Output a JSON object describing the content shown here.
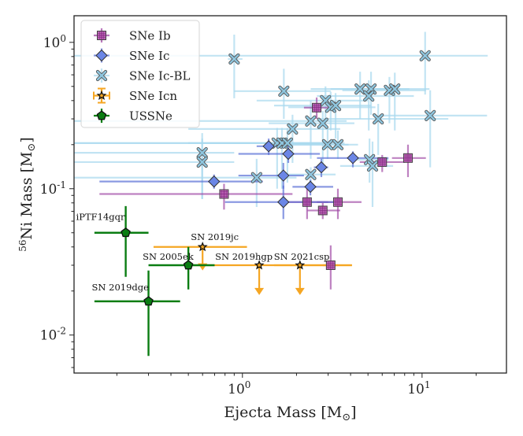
{
  "chart_data": {
    "type": "scatter",
    "title": "",
    "xlabel": "Ejecta Mass [M⊙]",
    "ylabel": "56Ni Mass [M⊙]",
    "xlabel_parts": {
      "text": "Ejecta Mass [M",
      "sub": "⊙",
      "close": "]"
    },
    "ylabel_parts": {
      "sup": "56",
      "text": "Ni Mass [M",
      "sub": "⊙",
      "close": "]"
    },
    "xscale": "log",
    "yscale": "log",
    "xlim": [
      0.1155,
      29.5
    ],
    "ylim": [
      0.0055,
      1.52
    ],
    "grid": false,
    "legend_position": "top-left",
    "x_ticks": [
      {
        "value": 1,
        "base": "10",
        "exp": "0"
      },
      {
        "value": 10,
        "base": "10",
        "exp": "1"
      }
    ],
    "y_ticks": [
      {
        "value": 1,
        "base": "10",
        "exp": "0"
      },
      {
        "value": 0.1,
        "base": "10",
        "exp": "-1"
      },
      {
        "value": 0.01,
        "base": "10",
        "exp": "-2"
      }
    ],
    "series": [
      {
        "name": "SNe Ib",
        "marker": "square",
        "color": "#9b3fa0",
        "face": "#b04aa8",
        "points": [
          {
            "x": 2.59,
            "y": 0.358,
            "xerr": [
              2.2,
              3.0
            ],
            "yerr": [
              0.3,
              0.42
            ]
          },
          {
            "x": 6.0,
            "y": 0.152,
            "xerr": [
              4.5,
              8.0
            ],
            "yerr": [
              0.13,
              0.17
            ]
          },
          {
            "x": 8.35,
            "y": 0.162,
            "xerr": [
              6.8,
              10.5
            ],
            "yerr": [
              0.12,
              0.2
            ]
          },
          {
            "x": 0.79,
            "y": 0.092,
            "xerr": [
              0.16,
              1.9
            ],
            "yerr": [
              0.072,
              0.108
            ]
          },
          {
            "x": 2.29,
            "y": 0.081,
            "xerr": [
              1.7,
              3.0
            ],
            "yerr": [
              0.062,
              0.1
            ]
          },
          {
            "x": 3.4,
            "y": 0.081,
            "xerr": [
              2.6,
              4.6
            ],
            "yerr": [
              0.062,
              0.1
            ]
          },
          {
            "x": 2.8,
            "y": 0.071,
            "xerr": [
              2.3,
              3.5
            ],
            "yerr": [
              0.062,
              0.08
            ]
          },
          {
            "x": 3.1,
            "y": 0.03,
            "xerr": [
              2.8,
              3.4
            ],
            "yerr": [
              0.0205,
              0.041
            ]
          }
        ]
      },
      {
        "name": "SNe Ic",
        "marker": "diamond",
        "color": "#5a6fd6",
        "face": "#6b86e6",
        "points": [
          {
            "x": 1.4,
            "y": 0.195,
            "xerr": [
              1.2,
              1.6
            ],
            "yerr": [
              0.17,
              0.22
            ]
          },
          {
            "x": 1.8,
            "y": 0.173,
            "xerr": [
              0.95,
              2.7
            ],
            "yerr": [
              0.15,
              0.2
            ]
          },
          {
            "x": 4.12,
            "y": 0.162,
            "xerr": [
              2.6,
              6.5
            ],
            "yerr": [
              0.14,
              0.18
            ]
          },
          {
            "x": 2.75,
            "y": 0.14,
            "xerr": [
              2.5,
              3.0
            ],
            "yerr": [
              0.12,
              0.16
            ]
          },
          {
            "x": 1.69,
            "y": 0.123,
            "xerr": [
              0.95,
              2.2
            ],
            "yerr": [
              0.1,
              0.15
            ]
          },
          {
            "x": 0.695,
            "y": 0.112,
            "xerr": [
              0.16,
              1.3
            ],
            "yerr": [
              0.1,
              0.125
            ]
          },
          {
            "x": 2.39,
            "y": 0.103,
            "xerr": [
              1.9,
              3.2
            ],
            "yerr": [
              0.09,
              0.115
            ]
          },
          {
            "x": 1.69,
            "y": 0.081,
            "xerr": [
              0.8,
              3.3
            ],
            "yerr": [
              0.062,
              0.105
            ]
          }
        ]
      },
      {
        "name": "SNe Ic-BL",
        "marker": "x",
        "color": "#a8d8ee",
        "face": "#8ec6df",
        "points": [
          {
            "x": 10.4,
            "y": 0.81,
            "xerr": [
              0.116,
              23.2
            ],
            "yerr": [
              0.44,
              1.18
            ]
          },
          {
            "x": 0.9,
            "y": 0.77,
            "xerr": [
              0.83,
              1.0
            ],
            "yerr": [
              0.415,
              1.13
            ]
          },
          {
            "x": 1.7,
            "y": 0.464,
            "xerr": [
              0.9,
              3.1
            ],
            "yerr": [
              0.3,
              0.66
            ]
          },
          {
            "x": 4.52,
            "y": 0.48,
            "xerr": [
              2.4,
              7.6
            ],
            "yerr": [
              0.3,
              0.63
            ]
          },
          {
            "x": 5.2,
            "y": 0.48,
            "xerr": [
              3.1,
              8.5
            ],
            "yerr": [
              0.32,
              0.63
            ]
          },
          {
            "x": 5.05,
            "y": 0.43,
            "xerr": [
              2.6,
              9.0
            ],
            "yerr": [
              0.25,
              0.55
            ]
          },
          {
            "x": 6.58,
            "y": 0.47,
            "xerr": [
              3.6,
              10.5
            ],
            "yerr": [
              0.28,
              0.58
            ]
          },
          {
            "x": 7.05,
            "y": 0.48,
            "xerr": [
              4.0,
              11.0
            ],
            "yerr": [
              0.25,
              0.62
            ]
          },
          {
            "x": 2.9,
            "y": 0.4,
            "xerr": [
              1.2,
              5.0
            ],
            "yerr": [
              0.3,
              0.5
            ]
          },
          {
            "x": 3.1,
            "y": 0.36,
            "xerr": [
              1.8,
              5.5
            ],
            "yerr": [
              0.25,
              0.46
            ]
          },
          {
            "x": 3.3,
            "y": 0.37,
            "xerr": [
              1.5,
              5.2
            ],
            "yerr": [
              0.22,
              0.45
            ]
          },
          {
            "x": 11.1,
            "y": 0.316,
            "xerr": [
              5.8,
              23.0
            ],
            "yerr": [
              0.14,
              0.47
            ]
          },
          {
            "x": 5.7,
            "y": 0.3,
            "xerr": [
              2.7,
              14.0
            ],
            "yerr": [
              0.17,
              0.38
            ]
          },
          {
            "x": 2.4,
            "y": 0.29,
            "xerr": [
              0.116,
              3.8
            ],
            "yerr": [
              0.16,
              0.4
            ]
          },
          {
            "x": 2.8,
            "y": 0.28,
            "xerr": [
              1.4,
              4.2
            ],
            "yerr": [
              0.14,
              0.34
            ]
          },
          {
            "x": 1.9,
            "y": 0.256,
            "xerr": [
              0.5,
              3.5
            ],
            "yerr": [
              0.15,
              0.32
            ]
          },
          {
            "x": 1.56,
            "y": 0.205,
            "xerr": [
              0.116,
              3.0
            ],
            "yerr": [
              0.1,
              0.26
            ]
          },
          {
            "x": 1.66,
            "y": 0.205,
            "xerr": [
              0.116,
              3.5
            ],
            "yerr": [
              0.1,
              0.26
            ]
          },
          {
            "x": 1.78,
            "y": 0.205,
            "xerr": [
              0.5,
              3.7
            ],
            "yerr": [
              0.11,
              0.26
            ]
          },
          {
            "x": 2.98,
            "y": 0.2,
            "xerr": [
              1.6,
              3.9
            ],
            "yerr": [
              0.16,
              0.26
            ]
          },
          {
            "x": 3.4,
            "y": 0.2,
            "xerr": [
              1.7,
              4.4
            ],
            "yerr": [
              0.16,
              0.25
            ]
          },
          {
            "x": 0.597,
            "y": 0.176,
            "xerr": [
              0.116,
              0.9
            ],
            "yerr": [
              0.085,
              0.24
            ]
          },
          {
            "x": 0.597,
            "y": 0.152,
            "xerr": [
              0.116,
              0.9
            ],
            "yerr": [
              0.085,
              0.22
            ]
          },
          {
            "x": 5.1,
            "y": 0.158,
            "xerr": [
              4.0,
              6.5
            ],
            "yerr": [
              0.11,
              0.22
            ]
          },
          {
            "x": 5.3,
            "y": 0.143,
            "xerr": [
              3.5,
              6.9
            ],
            "yerr": [
              0.075,
              0.21
            ]
          },
          {
            "x": 1.2,
            "y": 0.119,
            "xerr": [
              0.116,
              2.0
            ],
            "yerr": [
              0.075,
              0.16
            ]
          },
          {
            "x": 2.4,
            "y": 0.125,
            "xerr": [
              1.8,
              3.3
            ],
            "yerr": [
              0.11,
              0.14
            ]
          }
        ]
      },
      {
        "name": "SNe Icn",
        "marker": "star",
        "color": "#f5a623",
        "face": "#f5a623",
        "upper_limit": true,
        "points": [
          {
            "label": "SN 2019jc",
            "x": 0.6,
            "y": 0.04,
            "xerr": [
              0.32,
              1.06
            ],
            "ylimit_to": 0.028
          },
          {
            "label": "SN 2019hgp",
            "x": 1.24,
            "y": 0.03,
            "xerr": [
              0.5,
              4.07
            ],
            "ylimit_to": 0.019
          },
          {
            "label": "SN 2021csp",
            "x": 2.09,
            "y": 0.03,
            "xerr": [
              1.5,
              4.07
            ],
            "ylimit_to": 0.019
          }
        ]
      },
      {
        "name": "USSNe",
        "marker": "pentagon",
        "color": "#0a7d12",
        "face": "#0a7d12",
        "points": [
          {
            "label": "iPTF14gqr",
            "x": 0.224,
            "y": 0.05,
            "xerr": [
              0.15,
              0.3
            ],
            "yerr": [
              0.025,
              0.076
            ]
          },
          {
            "label": "SN 2005ek",
            "x": 0.5,
            "y": 0.03,
            "xerr": [
              0.3,
              0.7
            ],
            "yerr": [
              0.0205,
              0.04
            ]
          },
          {
            "label": "SN 2019dge",
            "x": 0.3,
            "y": 0.017,
            "xerr": [
              0.15,
              0.45
            ],
            "yerr": [
              0.0072,
              0.0276
            ]
          }
        ]
      }
    ],
    "annotations": [
      {
        "text": "iPTF14gqr",
        "x": 0.224,
        "y": 0.05
      },
      {
        "text": "SN 2019jc",
        "x": 0.6,
        "y": 0.04
      },
      {
        "text": "SN 2005ek",
        "x": 0.5,
        "y": 0.03
      },
      {
        "text": "SN 2019hgp",
        "x": 1.24,
        "y": 0.03
      },
      {
        "text": "SN 2021csp",
        "x": 2.09,
        "y": 0.03
      },
      {
        "text": "SN 2019dge",
        "x": 0.3,
        "y": 0.017
      }
    ]
  }
}
